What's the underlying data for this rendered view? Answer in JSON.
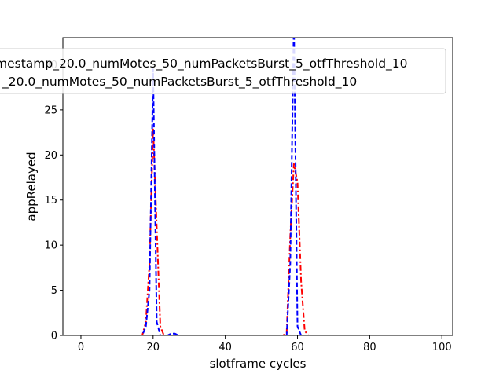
{
  "chart_data": {
    "type": "line",
    "xlabel": "slotframe cycles",
    "ylabel": "appRelayed",
    "xlim": [
      -5,
      103
    ],
    "ylim": [
      0,
      33
    ],
    "xticks": [
      0,
      20,
      40,
      60,
      80,
      100
    ],
    "yticks": [
      0,
      5,
      10,
      15,
      20,
      25,
      30
    ],
    "grid": false,
    "legend_position": "top-right",
    "legend_entries": [
      "mestamp_20.0_numMotes_50_numPacketsBurst_5_otfThreshold_10",
      "_20.0_numMotes_50_numPacketsBurst_5_otfThreshold_10"
    ],
    "series": [
      {
        "name": "mestamp_20.0_numMotes_50_numPacketsBurst_5_otfThreshold_10",
        "color": "#ff0000",
        "style": "dash-dot",
        "x": [
          0,
          17,
          18,
          19,
          20,
          21,
          22,
          23,
          56,
          57,
          58,
          59,
          60,
          61,
          62,
          63,
          99
        ],
        "y": [
          0,
          0,
          1.5,
          8,
          23,
          12,
          1,
          0,
          0,
          0.3,
          11,
          19,
          17,
          6,
          0.5,
          0,
          0
        ]
      },
      {
        "name": "_20.0_numMotes_50_numPacketsBurst_5_otfThreshold_10",
        "color": "#0000ff",
        "style": "dashed",
        "x": [
          0,
          17,
          18,
          19,
          20,
          21,
          22,
          24,
          25,
          26,
          27,
          57,
          58,
          59,
          60,
          61,
          62,
          99
        ],
        "y": [
          0,
          0,
          1,
          5,
          29.5,
          1.5,
          0,
          0,
          0.2,
          0.2,
          0,
          0,
          8,
          35,
          1,
          0,
          0,
          0
        ]
      }
    ]
  }
}
